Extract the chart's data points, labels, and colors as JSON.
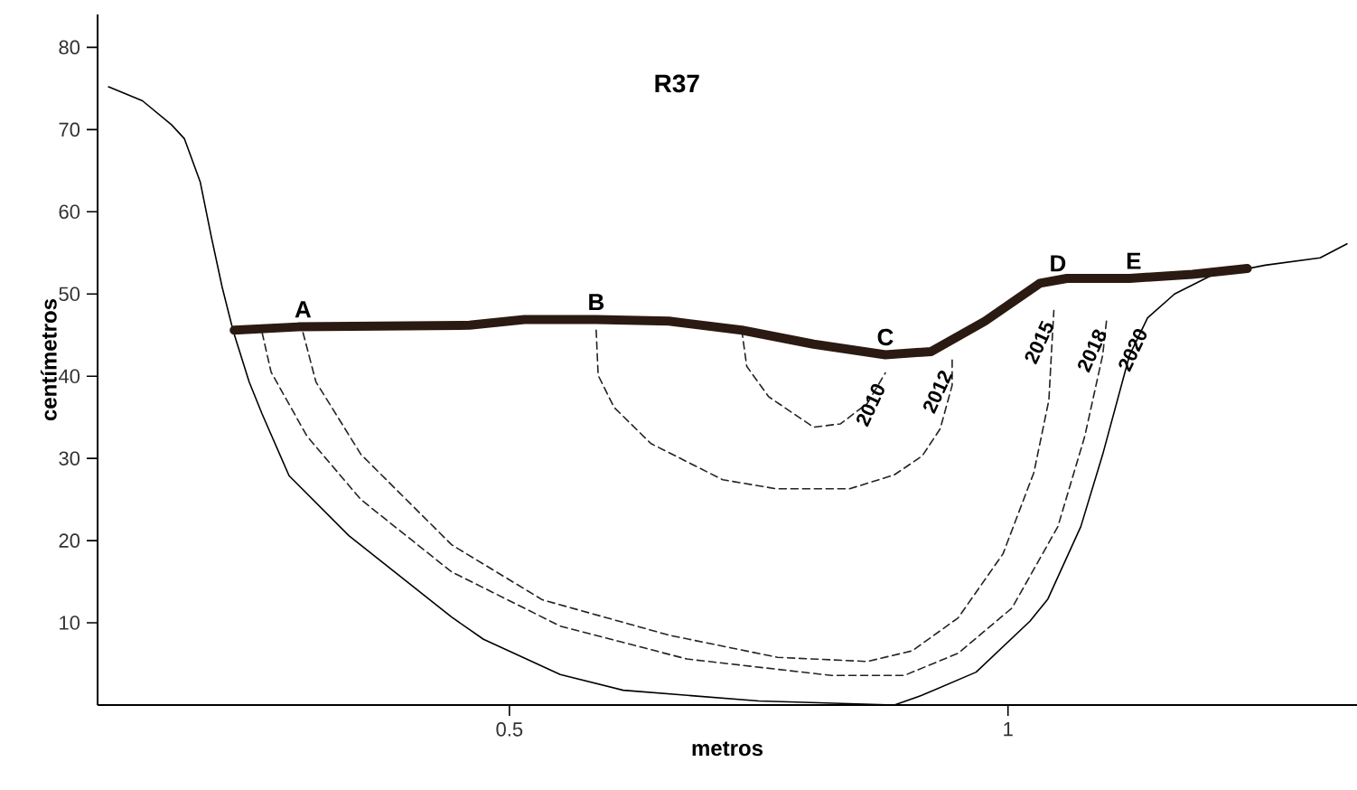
{
  "chart_data": {
    "type": "line",
    "title": "R37",
    "xlabel": "metros",
    "ylabel": "centímetros",
    "xlim": [
      0.087,
      1.35
    ],
    "ylim": [
      0,
      84
    ],
    "xticks": [
      0.5,
      1
    ],
    "yticks": [
      10,
      20,
      30,
      40,
      50,
      60,
      70,
      80
    ],
    "grid": false,
    "legend": false,
    "marker": "none",
    "series": [
      {
        "name": "2020",
        "color": "#000000",
        "line_style": "solid",
        "x": [
          0.098,
          0.132,
          0.161,
          0.174,
          0.19,
          0.201,
          0.212,
          0.223,
          0.239,
          0.252,
          0.279,
          0.339,
          0.442,
          0.474,
          0.551,
          0.614,
          0.75,
          0.886,
          0.914,
          0.968,
          1.022,
          1.04,
          1.073,
          1.095,
          1.122,
          1.14,
          1.167,
          1.203,
          1.258,
          1.313,
          1.34
        ],
        "values": [
          75.2,
          73.5,
          70.6,
          68.9,
          63.6,
          57,
          50.8,
          45.5,
          39.3,
          35.4,
          27.9,
          20.6,
          10.7,
          8,
          3.7,
          1.8,
          0.5,
          0,
          1.2,
          4,
          10.2,
          12.9,
          21.7,
          30.5,
          42.6,
          47.1,
          50,
          52.2,
          53.5,
          54.4,
          56.1
        ]
      },
      {
        "name": "2018",
        "color": "#222222",
        "line_style": "dashed",
        "x": [
          0.252,
          0.261,
          0.297,
          0.351,
          0.442,
          0.551,
          0.678,
          0.823,
          0.896,
          0.95,
          1.004,
          1.05,
          1.077,
          1.095,
          1.099
        ],
        "values": [
          45.3,
          40.5,
          32.7,
          25,
          16.2,
          9.6,
          5.6,
          3.6,
          3.6,
          6.3,
          11.8,
          21.7,
          32.7,
          42.6,
          47
        ]
      },
      {
        "name": "2015",
        "color": "#222222",
        "line_style": "dashed",
        "x": [
          0.293,
          0.306,
          0.351,
          0.442,
          0.533,
          0.66,
          0.769,
          0.859,
          0.904,
          0.95,
          0.995,
          1.026,
          1.041,
          1.044,
          1.046
        ],
        "values": [
          45.3,
          39.3,
          30.5,
          19.5,
          12.8,
          8.5,
          5.8,
          5.3,
          6.6,
          10.6,
          18.4,
          28.3,
          37.1,
          43.8,
          48
        ]
      },
      {
        "name": "2012",
        "color": "#222222",
        "line_style": "dashed",
        "x": [
          0.587,
          0.589,
          0.605,
          0.642,
          0.714,
          0.768,
          0.841,
          0.886,
          0.914,
          0.932,
          0.944,
          0.944
        ],
        "values": [
          45.6,
          40.1,
          36.2,
          31.8,
          27.4,
          26.3,
          26.3,
          28,
          30.3,
          33.6,
          38.9,
          42
        ]
      },
      {
        "name": "2010",
        "color": "#222222",
        "line_style": "dashed",
        "x": [
          0.733,
          0.738,
          0.76,
          0.805,
          0.832,
          0.859,
          0.877
        ],
        "values": [
          45.6,
          41.2,
          37.5,
          33.8,
          34.2,
          36.7,
          40.4
        ]
      },
      {
        "color": "#2b1a12",
        "line_style": "solid",
        "x": [
          0.224,
          0.288,
          0.46,
          0.515,
          0.587,
          0.66,
          0.733,
          0.805,
          0.877,
          0.923,
          0.977,
          1.032,
          1.059,
          1.122,
          1.185,
          1.24
        ],
        "values": [
          45.6,
          46,
          46.2,
          46.9,
          46.9,
          46.7,
          45.6,
          43.9,
          42.6,
          43,
          46.7,
          51.3,
          51.9,
          51.9,
          52.4,
          53.1
        ]
      }
    ],
    "annotations": [
      {
        "text": "A",
        "x": 0.293,
        "y": 46
      },
      {
        "text": "B",
        "x": 0.587,
        "y": 46.9
      },
      {
        "text": "C",
        "x": 0.877,
        "y": 42.6
      },
      {
        "text": "D",
        "x": 1.05,
        "y": 51.6
      },
      {
        "text": "E",
        "x": 1.126,
        "y": 51.9
      }
    ]
  }
}
